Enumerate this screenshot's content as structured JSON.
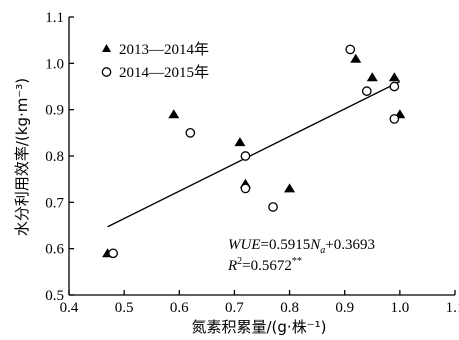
{
  "chart_data": {
    "type": "scatter",
    "title": "",
    "xlabel": "氮素积累量/(g·株⁻¹)",
    "ylabel": "水分利用效率/(kg·m⁻³)",
    "xlim": [
      0.4,
      1.1
    ],
    "ylim": [
      0.5,
      1.1
    ],
    "xticks": [
      "0.4",
      "0.5",
      "0.6",
      "0.7",
      "0.8",
      "0.9",
      "1.0",
      "1.1"
    ],
    "yticks": [
      "0.5",
      "0.6",
      "0.7",
      "0.8",
      "0.9",
      "1.0",
      "1.1"
    ],
    "legend_position": "top-left",
    "series": [
      {
        "name": "2013—2014年",
        "marker": "filled-triangle",
        "color": "#000000",
        "points": [
          [
            0.47,
            0.59
          ],
          [
            0.59,
            0.89
          ],
          [
            0.71,
            0.83
          ],
          [
            0.72,
            0.74
          ],
          [
            0.8,
            0.73
          ],
          [
            0.92,
            1.01
          ],
          [
            0.95,
            0.97
          ],
          [
            0.99,
            0.97
          ],
          [
            1.0,
            0.89
          ]
        ]
      },
      {
        "name": "2014—2015年",
        "marker": "open-circle",
        "color": "#000000",
        "points": [
          [
            0.48,
            0.59
          ],
          [
            0.62,
            0.85
          ],
          [
            0.72,
            0.8
          ],
          [
            0.72,
            0.73
          ],
          [
            0.77,
            0.69
          ],
          [
            0.91,
            1.03
          ],
          [
            0.94,
            0.94
          ],
          [
            0.99,
            0.95
          ],
          [
            0.99,
            0.88
          ]
        ]
      }
    ],
    "trendline": {
      "slope": 0.5915,
      "intercept": 0.3693,
      "x_range": [
        0.47,
        1.0
      ]
    },
    "equation_label": {
      "wue": "WUE",
      "eq_mid": "=0.5915",
      "n_var": "N",
      "n_sub": "a",
      "eq_end": "+0.3693"
    },
    "r2_label": {
      "r": "R",
      "sup": "2",
      "value": "=0.5672",
      "stars": "**"
    }
  }
}
